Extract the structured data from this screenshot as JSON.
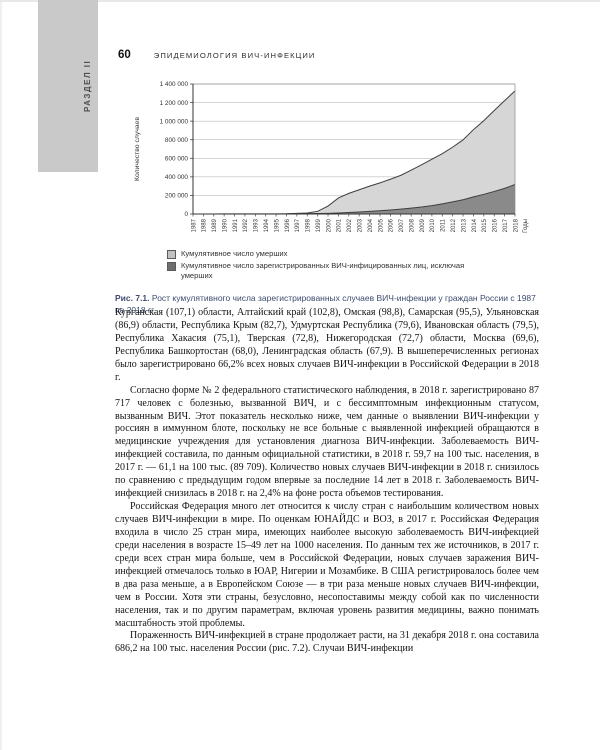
{
  "page": {
    "number": "60",
    "running_head": "ЭПИДЕМИОЛОГИЯ ВИЧ-ИНФЕКЦИИ",
    "section_tab": "РАЗДЕЛ II"
  },
  "figure": {
    "caption_label": "Рис. 7.1.",
    "caption_text": "Рост кумулятивного числа зарегистрированных случаев ВИЧ-инфекции у граждан России с 1987 по 2018 гг.",
    "legend": [
      {
        "label": "Кумулятивное число умерших",
        "swatch_color": "#c2c2c2"
      },
      {
        "label": "Кумулятивное число зарегистрированных ВИЧ-инфицированных лиц, исключая умерших",
        "swatch_color": "#6f6f6f"
      }
    ]
  },
  "chart_data": {
    "type": "area",
    "stacked": true,
    "title": "",
    "ylabel": "Количество случаев",
    "xlabel": "Годы",
    "ylim": [
      0,
      1400000
    ],
    "grid": true,
    "ytick_labels": [
      "0",
      "200 000",
      "400 000",
      "600 000",
      "800 000",
      "1 000 000",
      "1 200 000",
      "1 400 000"
    ],
    "years": [
      1987,
      1988,
      1989,
      1990,
      1991,
      1992,
      1993,
      1994,
      1995,
      1996,
      1997,
      1998,
      1999,
      2000,
      2001,
      2002,
      2003,
      2004,
      2005,
      2006,
      2007,
      2008,
      2009,
      2010,
      2011,
      2012,
      2013,
      2014,
      2015,
      2016,
      2017,
      2018
    ],
    "series": [
      {
        "name": "Кумулятивное число умерших",
        "color": "#8a8a8a",
        "values": [
          0,
          0,
          50,
          100,
          150,
          200,
          250,
          300,
          400,
          1500,
          2500,
          3500,
          5000,
          7000,
          11000,
          16000,
          22000,
          28000,
          35000,
          43000,
          52000,
          63000,
          75000,
          90000,
          109000,
          130000,
          153000,
          184000,
          212000,
          243000,
          276000,
          318000
        ]
      },
      {
        "name": "Кумулятивное число зарегистрированных ВИЧ-инфицированных лиц, исключая умерших",
        "color": "#d6d6d6",
        "values": [
          100,
          300,
          450,
          600,
          650,
          700,
          750,
          800,
          800,
          1100,
          4500,
          7500,
          24000,
          79000,
          162000,
          206000,
          239000,
          272000,
          300000,
          331000,
          364000,
          409000,
          455000,
          500000,
          541000,
          590000,
          646000,
          724000,
          794000,
          872000,
          945000,
          1008000
        ]
      }
    ]
  },
  "content": {
    "paragraphs": [
      {
        "indent": false,
        "text": "Курганская (107,1) области, Алтайский край (102,8), Омская (98,8), Самарская (95,5), Ульяновская (86,9) области, Республика Крым (82,7), Удмуртская Республика (79,6), Ивановская область (79,5), Республика Хакасия (75,1), Тверская (72,8), Нижегородская (72,7) области, Москва (69,6), Республика Башкортостан (68,0), Ленинградская область (67,9). В вышеперечисленных регионах было зарегистрировано 66,2% всех новых случаев ВИЧ-инфекции в Российской Федерации в 2018 г."
      },
      {
        "indent": true,
        "text": "Согласно форме № 2 федерального статистического наблюдения, в 2018 г. зарегистрировано 87 717 человек с болезнью, вызванной ВИЧ, и с бессимптомным инфекционным статусом, вызванным ВИЧ. Этот показатель несколько ниже, чем данные о выявлении ВИЧ-инфекции у россиян в иммунном блоте, поскольку не все больные с выявленной инфекцией обращаются в медицинские учреждения для установления диагноза ВИЧ-инфекции. Заболеваемость ВИЧ-инфекцией составила, по данным официальной статистики, в 2018 г. 59,7 на 100 тыс. населения, в 2017 г. — 61,1 на 100 тыс. (89 709). Количество новых случаев ВИЧ-инфекции в 2018 г. снизилось по сравнению с предыдущим годом впервые за последние 14 лет в 2018 г. Заболеваемость ВИЧ-инфекцией снизилась в 2018 г. на 2,4% на фоне роста объемов тестирования."
      },
      {
        "indent": true,
        "text": "Российская Федерация много лет относится к числу стран с наибольшим количеством новых случаев ВИЧ-инфекции в мире. По оценкам ЮНАЙДС и ВОЗ, в 2017 г. Российская Федерация входила в число 25 стран мира, имеющих наиболее высокую заболеваемость ВИЧ-инфекцией среди населения в возрасте 15–49 лет на 1000 населения. По данным тех же источников, в 2017 г. среди всех стран мира больше, чем в Российской Федерации, новых случаев заражения ВИЧ-инфекцией отмечалось только в ЮАР, Нигерии и Мозамбике. В США регистрировалось более чем в два раза меньше, а в Европейском Союзе — в три раза меньше новых случаев ВИЧ-инфекции, чем в России. Хотя эти страны, безусловно, несопоставимы между собой как по численности населения, так и по другим параметрам, включая уровень развития медицины, важно понимать масштабность этой проблемы."
      },
      {
        "indent": true,
        "text": "Пораженность ВИЧ-инфекцией в стране продолжает расти, на 31 декабря 2018 г. она составила 686,2 на 100 тыс. населения России (рис. 7.2). Случаи ВИЧ-инфекции"
      }
    ]
  }
}
